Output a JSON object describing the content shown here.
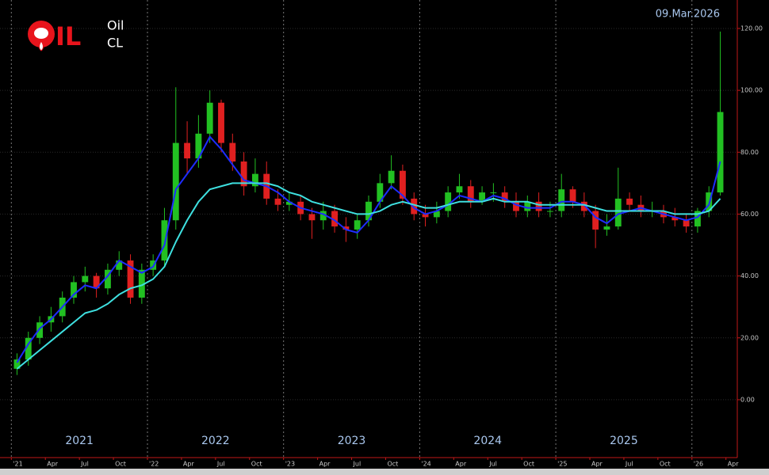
{
  "header": {
    "logo": "IL",
    "name": "Oil",
    "symbol": "CL",
    "date": "09.Mar.2026"
  },
  "chart_data": {
    "type": "candlestick",
    "x": [
      "2021-01",
      "2021-02",
      "2021-03",
      "2021-04",
      "2021-05",
      "2021-06",
      "2021-07",
      "2021-08",
      "2021-09",
      "2021-10",
      "2021-11",
      "2021-12",
      "2022-01",
      "2022-02",
      "2022-03",
      "2022-04",
      "2022-05",
      "2022-06",
      "2022-07",
      "2022-08",
      "2022-09",
      "2022-10",
      "2022-11",
      "2022-12",
      "2023-01",
      "2023-02",
      "2023-03",
      "2023-04",
      "2023-05",
      "2023-06",
      "2023-07",
      "2023-08",
      "2023-09",
      "2023-10",
      "2023-11",
      "2023-12",
      "2024-01",
      "2024-02",
      "2024-03",
      "2024-04",
      "2024-05",
      "2024-06",
      "2024-07",
      "2024-08",
      "2024-09",
      "2024-10",
      "2024-11",
      "2024-12",
      "2025-01",
      "2025-02",
      "2025-03",
      "2025-04",
      "2025-05",
      "2025-06",
      "2025-07",
      "2025-08",
      "2025-09",
      "2025-10",
      "2025-11",
      "2025-12",
      "2026-01",
      "2026-02",
      "2026-03"
    ],
    "open": [
      10,
      13,
      20,
      25,
      27,
      33,
      38,
      40,
      36,
      42,
      45,
      33,
      42,
      45,
      58,
      83,
      78,
      86,
      96,
      83,
      77,
      69,
      73,
      65,
      63,
      64,
      60,
      58,
      61,
      56,
      55,
      58,
      64,
      70,
      74,
      65,
      60,
      59,
      61,
      67,
      69,
      64,
      67,
      67,
      64,
      61,
      64,
      61,
      61,
      68,
      64,
      61,
      55,
      56,
      65,
      63,
      61,
      61,
      59,
      58,
      56,
      61,
      67
    ],
    "high": [
      15,
      22,
      27,
      30,
      35,
      40,
      43,
      41,
      44,
      48,
      47,
      44,
      47,
      62,
      101,
      90,
      92,
      100,
      97,
      86,
      80,
      78,
      77,
      68,
      67,
      66,
      62,
      64,
      63,
      59,
      60,
      66,
      73,
      79,
      76,
      67,
      63,
      64,
      69,
      73,
      71,
      69,
      70,
      69,
      67,
      66,
      67,
      64,
      73,
      69,
      67,
      63,
      60,
      75,
      67,
      66,
      64,
      63,
      62,
      60,
      62,
      69,
      119
    ],
    "low": [
      8,
      11,
      18,
      22,
      25,
      31,
      35,
      33,
      34,
      40,
      31,
      31,
      40,
      43,
      55,
      73,
      75,
      83,
      80,
      74,
      66,
      67,
      63,
      61,
      61,
      58,
      52,
      55,
      54,
      51,
      52,
      56,
      62,
      68,
      63,
      58,
      56,
      57,
      59,
      65,
      62,
      63,
      64,
      62,
      59,
      59,
      59,
      59,
      59,
      62,
      59,
      49,
      53,
      55,
      61,
      59,
      59,
      57,
      56,
      54,
      54,
      59,
      66
    ],
    "close": [
      13,
      20,
      25,
      27,
      33,
      38,
      40,
      36,
      42,
      45,
      33,
      42,
      45,
      58,
      83,
      78,
      86,
      96,
      83,
      77,
      69,
      73,
      65,
      63,
      64,
      60,
      58,
      61,
      56,
      55,
      58,
      64,
      70,
      74,
      65,
      60,
      59,
      61,
      67,
      69,
      64,
      67,
      67,
      64,
      61,
      64,
      61,
      61,
      68,
      64,
      61,
      55,
      56,
      65,
      63,
      61,
      61,
      59,
      58,
      56,
      61,
      67,
      93
    ],
    "up_color": "#22c022",
    "down_color": "#e02020",
    "series": [
      {
        "color": "#1e2cff",
        "values": [
          12,
          18,
          23,
          26,
          30,
          34,
          37,
          36,
          40,
          45,
          43,
          41,
          43,
          50,
          68,
          73,
          78,
          85,
          81,
          76,
          71,
          70,
          69,
          67,
          64,
          62,
          61,
          60,
          58,
          55,
          54,
          58,
          64,
          69,
          66,
          62,
          60,
          61,
          63,
          66,
          65,
          64,
          66,
          65,
          63,
          62,
          62,
          62,
          64,
          64,
          63,
          59,
          57,
          60,
          61,
          62,
          61,
          60,
          59,
          58,
          59,
          63,
          77
        ]
      },
      {
        "color": "#3ee0e0",
        "values": [
          10,
          13,
          16,
          19,
          22,
          25,
          28,
          29,
          31,
          34,
          36,
          37,
          39,
          43,
          51,
          58,
          64,
          68,
          69,
          70,
          70,
          70,
          70,
          69,
          67,
          66,
          64,
          63,
          62,
          61,
          60,
          60,
          61,
          63,
          64,
          63,
          62,
          62,
          63,
          64,
          64,
          64,
          65,
          64,
          64,
          64,
          63,
          63,
          63,
          63,
          63,
          62,
          61,
          61,
          61,
          61,
          61,
          61,
          60,
          60,
          60,
          61,
          65
        ]
      }
    ],
    "xlim": [
      "2020-12",
      "2026-05"
    ],
    "xticks": [
      {
        "value": "2021-01",
        "label": "'21"
      },
      {
        "value": "2021-04",
        "label": "Apr"
      },
      {
        "value": "2021-07",
        "label": "Jul"
      },
      {
        "value": "2021-10",
        "label": "Oct"
      },
      {
        "value": "2022-01",
        "label": "'22"
      },
      {
        "value": "2022-04",
        "label": "Apr"
      },
      {
        "value": "2022-07",
        "label": "Jul"
      },
      {
        "value": "2022-10",
        "label": "Oct"
      },
      {
        "value": "2023-01",
        "label": "'23"
      },
      {
        "value": "2023-04",
        "label": "Apr"
      },
      {
        "value": "2023-07",
        "label": "Jul"
      },
      {
        "value": "2023-10",
        "label": "Oct"
      },
      {
        "value": "2024-01",
        "label": "'24"
      },
      {
        "value": "2024-04",
        "label": "Apr"
      },
      {
        "value": "2024-07",
        "label": "Jul"
      },
      {
        "value": "2024-10",
        "label": "Oct"
      },
      {
        "value": "2025-01",
        "label": "'25"
      },
      {
        "value": "2025-04",
        "label": "Apr"
      },
      {
        "value": "2025-07",
        "label": "Jul"
      },
      {
        "value": "2025-10",
        "label": "Oct"
      },
      {
        "value": "2026-01",
        "label": "'26"
      },
      {
        "value": "2026-04",
        "label": "Apr"
      }
    ],
    "year_labels": [
      {
        "value": "2021-07",
        "label": "2021"
      },
      {
        "value": "2022-07",
        "label": "2022"
      },
      {
        "value": "2023-07",
        "label": "2023"
      },
      {
        "value": "2024-07",
        "label": "2024"
      },
      {
        "value": "2025-07",
        "label": "2025"
      }
    ],
    "ylim": [
      -18.7,
      129.2
    ],
    "yticks": [
      {
        "value": 0,
        "label": "0.00"
      },
      {
        "value": 20,
        "label": "20.00"
      },
      {
        "value": 40,
        "label": "40.00"
      },
      {
        "value": 60,
        "label": "60.00"
      },
      {
        "value": 80,
        "label": "80.00"
      },
      {
        "value": 100,
        "label": "100.00"
      },
      {
        "value": 120,
        "label": "120.00"
      }
    ],
    "grid": true
  }
}
